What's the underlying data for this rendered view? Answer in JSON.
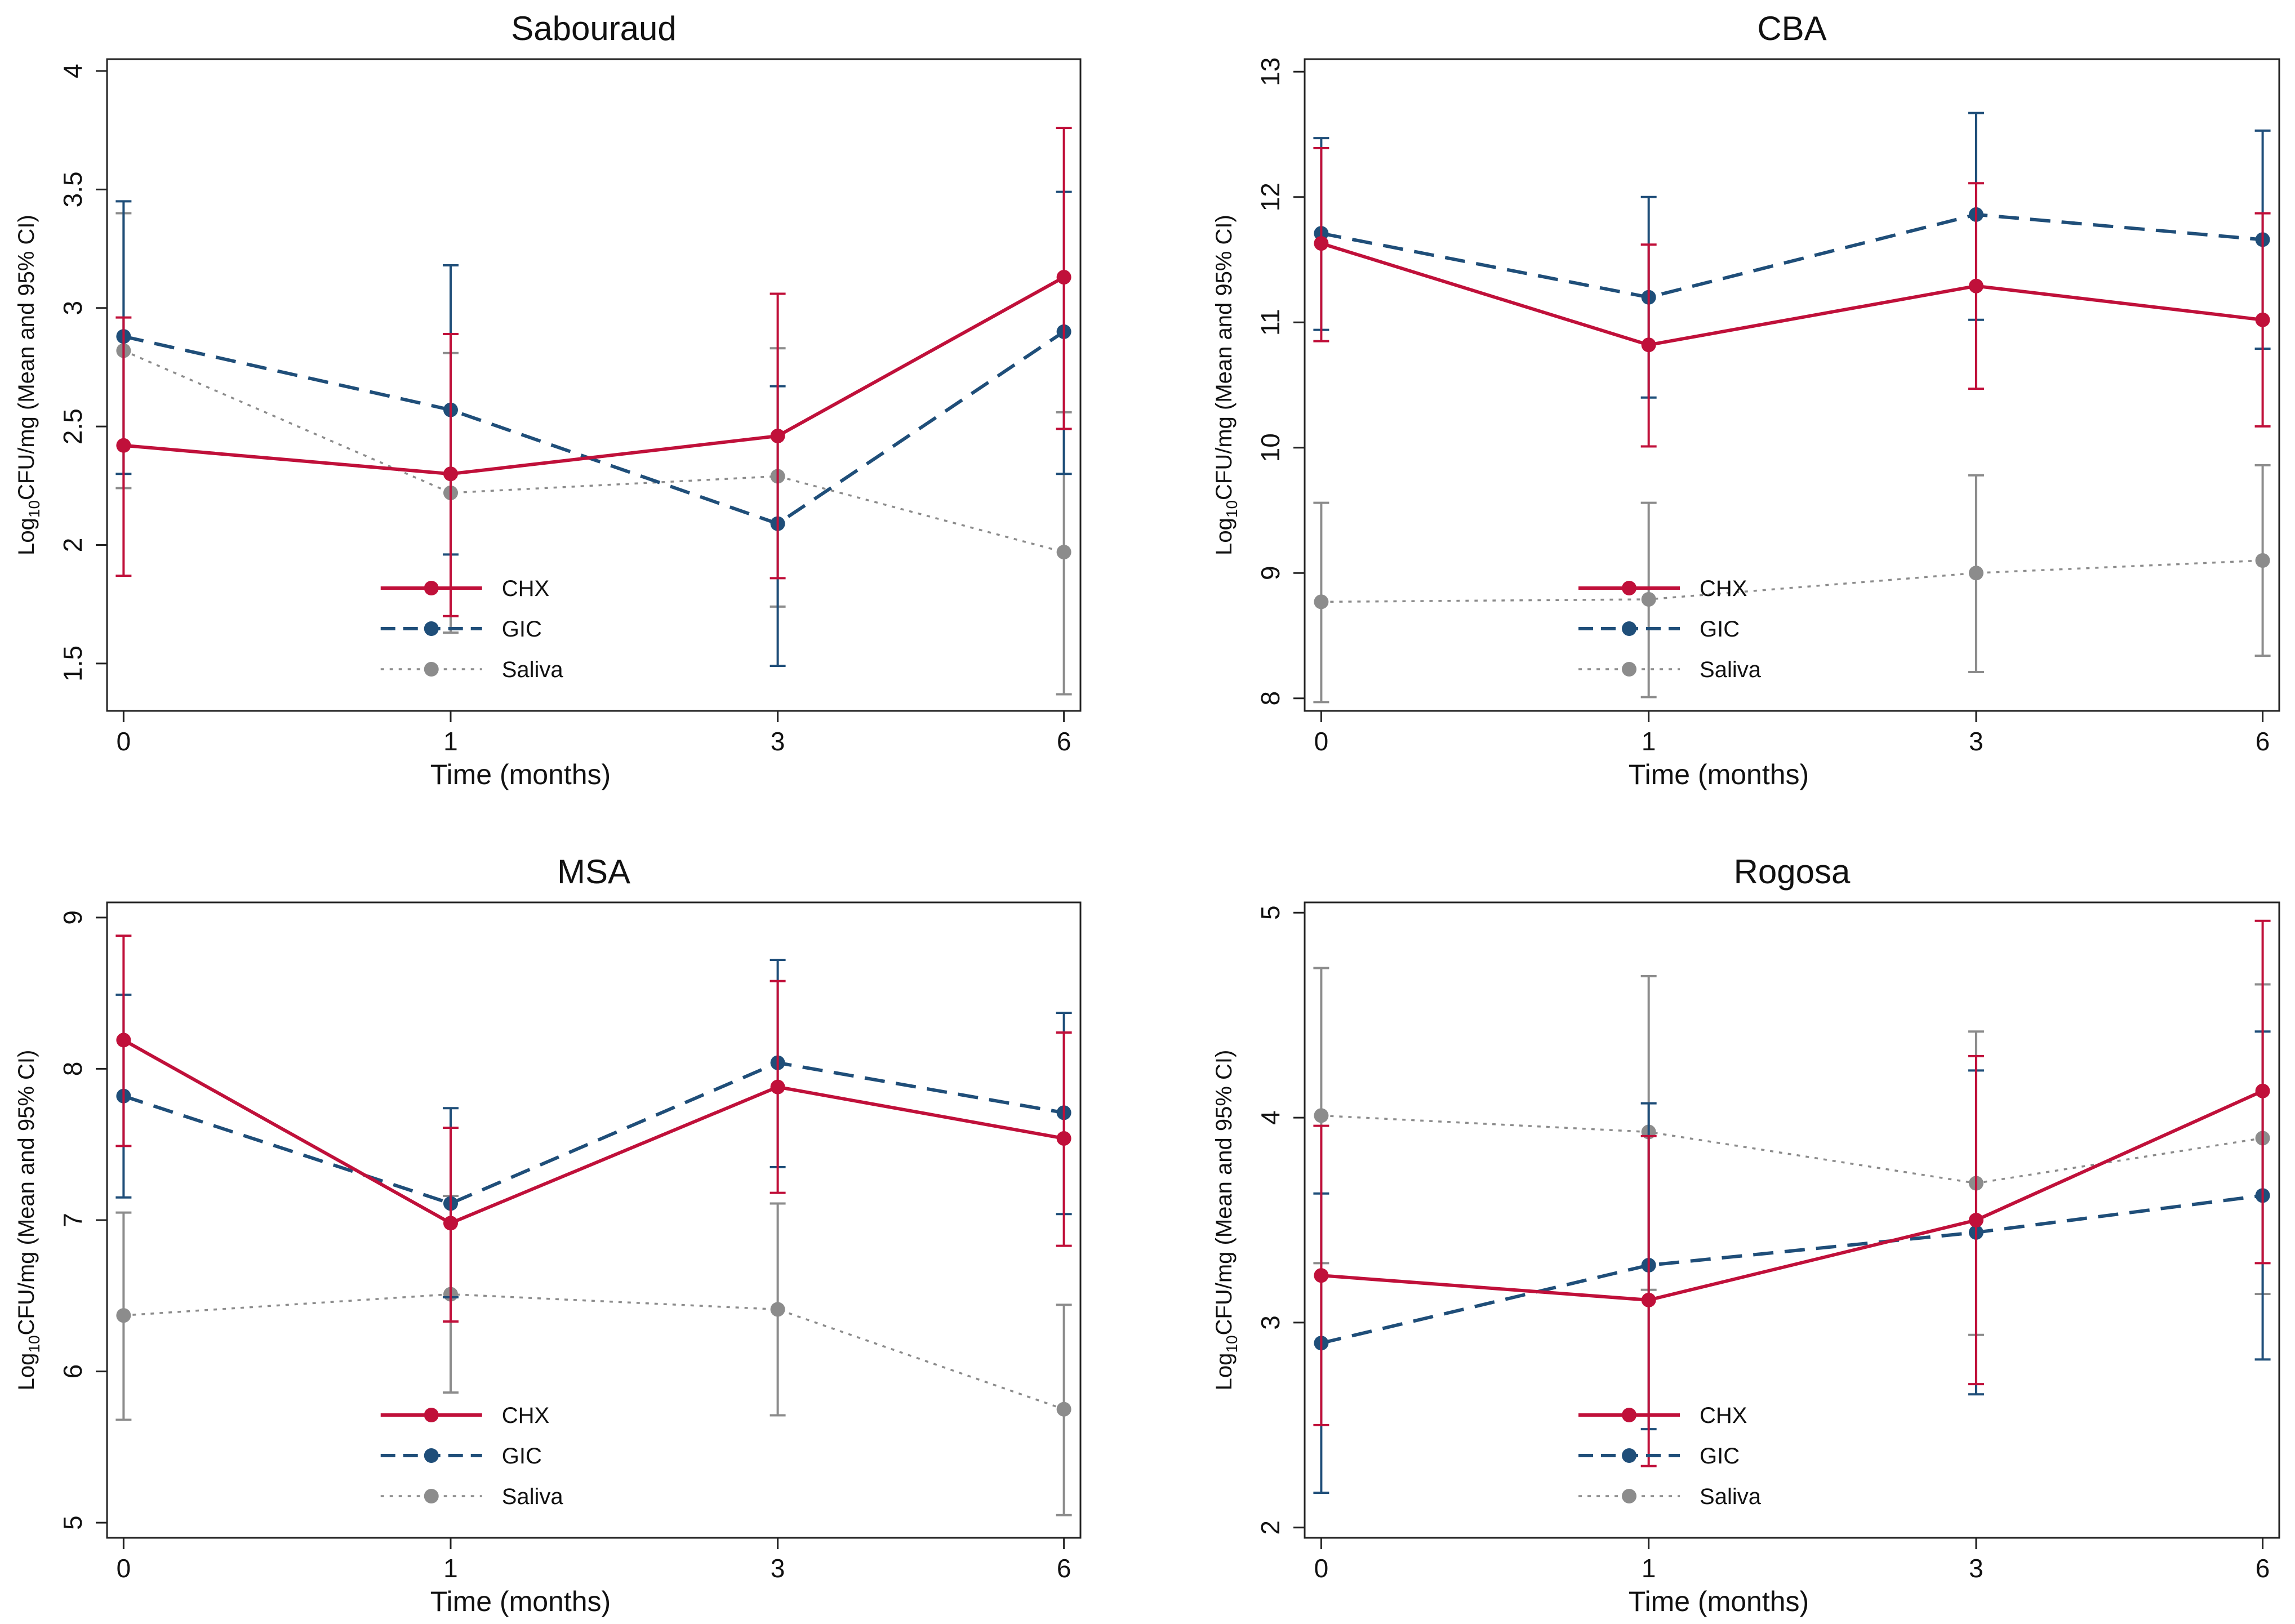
{
  "chart_data": [
    {
      "type": "line",
      "title": "Sabouraud",
      "xlabel": "Time (months)",
      "ylabel_prefix": "Log",
      "ylabel_sub": "10",
      "ylabel_suffix": "CFU/mg (Mean and 95% CI)",
      "x_categories": [
        "0",
        "1",
        "3",
        "6"
      ],
      "ylim": [
        1.3,
        4.05
      ],
      "yticks": [
        1.5,
        2,
        2.5,
        3,
        3.5,
        4
      ],
      "ytick_labels": [
        "1.5",
        "2",
        "2.5",
        "3",
        "3.5",
        "4"
      ],
      "legend_position": "bottom-center",
      "series": [
        {
          "name": "CHX",
          "color": "#c0103a",
          "values": [
            2.42,
            2.3,
            2.46,
            3.13
          ],
          "ci_low": [
            1.87,
            1.7,
            1.86,
            2.49
          ],
          "ci_high": [
            2.96,
            2.89,
            3.06,
            3.76
          ]
        },
        {
          "name": "GIC",
          "color": "#1f4e79",
          "values": [
            2.88,
            2.57,
            2.09,
            2.9
          ],
          "ci_low": [
            2.3,
            1.96,
            1.49,
            2.3
          ],
          "ci_high": [
            3.45,
            3.18,
            2.67,
            3.49
          ]
        },
        {
          "name": "Saliva",
          "color": "#8c8c8c",
          "values": [
            2.82,
            2.22,
            2.29,
            1.97
          ],
          "ci_low": [
            2.24,
            1.63,
            1.74,
            1.37
          ],
          "ci_high": [
            3.4,
            2.81,
            2.83,
            2.56
          ]
        }
      ]
    },
    {
      "type": "line",
      "title": "CBA",
      "xlabel": "Time (months)",
      "ylabel_prefix": "Log",
      "ylabel_sub": "10",
      "ylabel_suffix": "CFU/mg (Mean and 95% CI)",
      "x_categories": [
        "0",
        "1",
        "3",
        "6"
      ],
      "ylim": [
        7.9,
        13.1
      ],
      "yticks": [
        8,
        9,
        10,
        11,
        12,
        13
      ],
      "ytick_labels": [
        "8",
        "9",
        "10",
        "11",
        "12",
        "13"
      ],
      "legend_position": "bottom-center",
      "series": [
        {
          "name": "CHX",
          "color": "#c0103a",
          "values": [
            11.63,
            10.82,
            11.29,
            11.02
          ],
          "ci_low": [
            10.85,
            10.01,
            10.47,
            10.17
          ],
          "ci_high": [
            12.39,
            11.62,
            12.11,
            11.87
          ]
        },
        {
          "name": "GIC",
          "color": "#1f4e79",
          "values": [
            11.71,
            11.2,
            11.86,
            11.66
          ],
          "ci_low": [
            10.94,
            10.4,
            11.02,
            10.79
          ],
          "ci_high": [
            12.47,
            12.0,
            12.67,
            12.53
          ]
        },
        {
          "name": "Saliva",
          "color": "#8c8c8c",
          "values": [
            8.77,
            8.79,
            9.0,
            9.1
          ],
          "ci_low": [
            7.97,
            8.01,
            8.21,
            8.34
          ],
          "ci_high": [
            9.56,
            9.56,
            9.78,
            9.86
          ]
        }
      ]
    },
    {
      "type": "line",
      "title": "MSA",
      "xlabel": "Time (months)",
      "ylabel_prefix": "Log",
      "ylabel_sub": "10",
      "ylabel_suffix": "CFU/mg (Mean and 95% CI)",
      "x_categories": [
        "0",
        "1",
        "3",
        "6"
      ],
      "ylim": [
        4.9,
        9.1
      ],
      "yticks": [
        5,
        6,
        7,
        8,
        9
      ],
      "ytick_labels": [
        "5",
        "6",
        "7",
        "8",
        "9"
      ],
      "legend_position": "bottom-center",
      "series": [
        {
          "name": "CHX",
          "color": "#c0103a",
          "values": [
            8.19,
            6.98,
            7.88,
            7.54
          ],
          "ci_low": [
            7.49,
            6.33,
            7.18,
            6.83
          ],
          "ci_high": [
            8.88,
            7.61,
            8.58,
            8.24
          ]
        },
        {
          "name": "GIC",
          "color": "#1f4e79",
          "values": [
            7.82,
            7.11,
            8.04,
            7.71
          ],
          "ci_low": [
            7.15,
            6.49,
            7.35,
            7.04
          ],
          "ci_high": [
            8.49,
            7.74,
            8.72,
            8.37
          ]
        },
        {
          "name": "Saliva",
          "color": "#8c8c8c",
          "values": [
            6.37,
            6.51,
            6.41,
            5.75
          ],
          "ci_low": [
            5.68,
            5.86,
            5.71,
            5.05
          ],
          "ci_high": [
            7.05,
            7.16,
            7.11,
            6.44
          ]
        }
      ]
    },
    {
      "type": "line",
      "title": "Rogosa",
      "xlabel": "Time (months)",
      "ylabel_prefix": "Log",
      "ylabel_sub": "10",
      "ylabel_suffix": "CFU/mg (Mean and 95% CI)",
      "x_categories": [
        "0",
        "1",
        "3",
        "6"
      ],
      "ylim": [
        1.95,
        5.05
      ],
      "yticks": [
        2,
        3,
        4,
        5
      ],
      "ytick_labels": [
        "2",
        "3",
        "4",
        "5"
      ],
      "legend_position": "bottom-center",
      "series": [
        {
          "name": "CHX",
          "color": "#c0103a",
          "values": [
            3.23,
            3.11,
            3.5,
            4.13
          ],
          "ci_low": [
            2.5,
            2.3,
            2.7,
            3.29
          ],
          "ci_high": [
            3.96,
            3.91,
            4.3,
            4.96
          ]
        },
        {
          "name": "GIC",
          "color": "#1f4e79",
          "values": [
            2.9,
            3.28,
            3.44,
            3.62
          ],
          "ci_low": [
            2.17,
            2.48,
            2.65,
            2.82
          ],
          "ci_high": [
            3.63,
            4.07,
            4.23,
            4.42
          ]
        },
        {
          "name": "Saliva",
          "color": "#8c8c8c",
          "values": [
            4.01,
            3.93,
            3.68,
            3.9
          ],
          "ci_low": [
            3.29,
            3.16,
            2.94,
            3.14
          ],
          "ci_high": [
            4.73,
            4.69,
            4.42,
            4.65
          ]
        }
      ]
    }
  ]
}
